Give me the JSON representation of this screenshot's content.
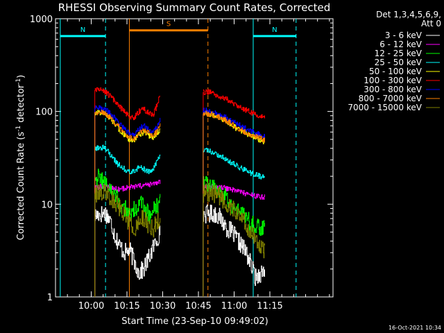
{
  "chart_data": {
    "type": "line",
    "title": "RHESSI Observing Summary Count Rates, Corrected",
    "xlabel": "Start Time (23-Sep-10 09:49:02)",
    "ylabel_main": "Corrected Count Rate (s",
    "ylabel_sup1": "-1",
    "ylabel_mid": " detector",
    "ylabel_sup2": "-1",
    "ylabel_end": ")",
    "yscale": "log",
    "ylim": [
      1,
      1000
    ],
    "xlim_minutes": [
      -4.0,
      112.5
    ],
    "x_ticks": [
      "10:00",
      "10:15",
      "10:30",
      "10:45",
      "11:00",
      "11:15"
    ],
    "x_tick_minutes": [
      11,
      26,
      41,
      56,
      71,
      86
    ],
    "y_ticks": [
      "1",
      "10",
      "100",
      "1000"
    ],
    "y_tick_values": [
      1,
      10,
      100,
      1000
    ],
    "legend_header": [
      "Det 1,3,4,5,6,9,",
      "Att 0"
    ],
    "legend_position": "top-right",
    "footer_date": "16-Oct-2021 10:34",
    "markers": [
      {
        "label": "N",
        "color": "#00ffff",
        "start": -2,
        "end": 17,
        "value": 650,
        "dashed_at": 17
      },
      {
        "label": "N",
        "color": "#00ffff",
        "start": 79,
        "end": 97,
        "value": 650,
        "dashed_at": 97
      },
      {
        "label": "S",
        "color": "#ff8000",
        "start": 27,
        "end": 60,
        "value": 750,
        "dashed_at": 60
      }
    ],
    "segments": [
      [
        12.5,
        40
      ],
      [
        58,
        84
      ]
    ],
    "series": [
      {
        "name": "3 - 6 keV",
        "color": "#ffffff",
        "points": [
          [
            12.5,
            7.5
          ],
          [
            14,
            7.8
          ],
          [
            17,
            8.0
          ],
          [
            19,
            6.5
          ],
          [
            21,
            4.5
          ],
          [
            23,
            3.5
          ],
          [
            25,
            3.0
          ],
          [
            27,
            3.2
          ],
          [
            29,
            2.4
          ],
          [
            31,
            1.8
          ],
          [
            33,
            2.0
          ],
          [
            35,
            2.6
          ],
          [
            37,
            3.4
          ],
          [
            39,
            4.5
          ],
          [
            40,
            5.0
          ],
          [
            58,
            7.8
          ],
          [
            61,
            8.0
          ],
          [
            64,
            7.7
          ],
          [
            66,
            6.5
          ],
          [
            68,
            5.5
          ],
          [
            70,
            5.0
          ],
          [
            72,
            4.2
          ],
          [
            74,
            3.6
          ],
          [
            76,
            3.0
          ],
          [
            78,
            2.2
          ],
          [
            80,
            1.6
          ],
          [
            82,
            1.8
          ],
          [
            84,
            2.0
          ]
        ]
      },
      {
        "name": "6 - 12 keV",
        "color": "#ff00ff",
        "points": [
          [
            12.5,
            15
          ],
          [
            15,
            15.5
          ],
          [
            17,
            16
          ],
          [
            19,
            15
          ],
          [
            22,
            14.5
          ],
          [
            26,
            15
          ],
          [
            30,
            15.5
          ],
          [
            34,
            16
          ],
          [
            37,
            16.5
          ],
          [
            40,
            17.5
          ],
          [
            58,
            15
          ],
          [
            62,
            15.5
          ],
          [
            66,
            15
          ],
          [
            70,
            14.5
          ],
          [
            74,
            13.5
          ],
          [
            78,
            12.5
          ],
          [
            82,
            12
          ],
          [
            84,
            12
          ]
        ]
      },
      {
        "name": "12 - 25 keV",
        "color": "#00ff00",
        "points": [
          [
            12.5,
            20
          ],
          [
            15,
            19
          ],
          [
            17,
            17
          ],
          [
            20,
            13
          ],
          [
            23,
            10
          ],
          [
            26,
            8.5
          ],
          [
            28,
            8.0
          ],
          [
            30,
            9.5
          ],
          [
            32,
            10
          ],
          [
            34,
            8.5
          ],
          [
            36,
            7.5
          ],
          [
            38,
            9.0
          ],
          [
            40,
            11
          ],
          [
            58,
            17
          ],
          [
            61,
            16
          ],
          [
            64,
            14
          ],
          [
            67,
            12
          ],
          [
            70,
            10
          ],
          [
            73,
            8.5
          ],
          [
            76,
            7.0
          ],
          [
            79,
            6.0
          ],
          [
            82,
            5.5
          ],
          [
            84,
            5.5
          ]
        ]
      },
      {
        "name": "25 - 50 keV",
        "color": "#00ffff",
        "points": [
          [
            12.5,
            40
          ],
          [
            15,
            41
          ],
          [
            17,
            40
          ],
          [
            19,
            34
          ],
          [
            22,
            27
          ],
          [
            26,
            23
          ],
          [
            28,
            22
          ],
          [
            30,
            24
          ],
          [
            32,
            25
          ],
          [
            34,
            23
          ],
          [
            36,
            22
          ],
          [
            38,
            27
          ],
          [
            40,
            34
          ],
          [
            58,
            38
          ],
          [
            61,
            37
          ],
          [
            64,
            34
          ],
          [
            67,
            31
          ],
          [
            70,
            28
          ],
          [
            73,
            25
          ],
          [
            76,
            23
          ],
          [
            79,
            21
          ],
          [
            82,
            20
          ],
          [
            84,
            19
          ]
        ]
      },
      {
        "name": "50 - 100 keV",
        "color": "#ffff00",
        "points": [
          [
            12.5,
            98
          ],
          [
            15,
            97
          ],
          [
            17,
            93
          ],
          [
            19,
            83
          ],
          [
            22,
            67
          ],
          [
            25,
            55
          ],
          [
            27,
            50
          ],
          [
            29,
            49
          ],
          [
            31,
            56
          ],
          [
            33,
            60
          ],
          [
            35,
            55
          ],
          [
            37,
            53
          ],
          [
            39,
            60
          ],
          [
            40,
            66
          ],
          [
            58,
            94
          ],
          [
            61,
            93
          ],
          [
            64,
            88
          ],
          [
            67,
            80
          ],
          [
            70,
            71
          ],
          [
            73,
            63
          ],
          [
            76,
            58
          ],
          [
            79,
            53
          ],
          [
            82,
            49
          ],
          [
            84,
            47
          ]
        ]
      },
      {
        "name": "100 - 300 keV",
        "color": "#ff0000",
        "points": [
          [
            12.5,
            170
          ],
          [
            15,
            168
          ],
          [
            17,
            162
          ],
          [
            19,
            145
          ],
          [
            22,
            118
          ],
          [
            25,
            98
          ],
          [
            27,
            88
          ],
          [
            29,
            85
          ],
          [
            31,
            100
          ],
          [
            33,
            107
          ],
          [
            35,
            96
          ],
          [
            37,
            90
          ],
          [
            39,
            125
          ],
          [
            40,
            155
          ],
          [
            58,
            162
          ],
          [
            61,
            162
          ],
          [
            64,
            150
          ],
          [
            67,
            138
          ],
          [
            70,
            125
          ],
          [
            73,
            112
          ],
          [
            76,
            103
          ],
          [
            79,
            95
          ],
          [
            82,
            89
          ],
          [
            84,
            86
          ]
        ]
      },
      {
        "name": "300 - 800 keV",
        "color": "#0000ff",
        "points": [
          [
            12.5,
            108
          ],
          [
            15,
            108
          ],
          [
            17,
            104
          ],
          [
            19,
            94
          ],
          [
            22,
            77
          ],
          [
            25,
            64
          ],
          [
            27,
            57
          ],
          [
            29,
            55
          ],
          [
            31,
            65
          ],
          [
            33,
            70
          ],
          [
            35,
            63
          ],
          [
            37,
            59
          ],
          [
            39,
            70
          ],
          [
            40,
            82
          ],
          [
            58,
            102
          ],
          [
            61,
            102
          ],
          [
            64,
            95
          ],
          [
            67,
            87
          ],
          [
            70,
            79
          ],
          [
            73,
            71
          ],
          [
            76,
            65
          ],
          [
            79,
            60
          ],
          [
            82,
            56
          ],
          [
            84,
            54
          ]
        ]
      },
      {
        "name": "800 - 7000 keV",
        "color": "#ff8000",
        "points": [
          [
            12.5,
            98
          ],
          [
            15,
            98
          ],
          [
            17,
            94
          ],
          [
            19,
            85
          ],
          [
            22,
            70
          ],
          [
            25,
            58
          ],
          [
            27,
            53
          ],
          [
            29,
            50
          ],
          [
            31,
            59
          ],
          [
            33,
            63
          ],
          [
            35,
            58
          ],
          [
            37,
            54
          ],
          [
            39,
            64
          ],
          [
            40,
            74
          ],
          [
            58,
            95
          ],
          [
            61,
            94
          ],
          [
            64,
            88
          ],
          [
            67,
            81
          ],
          [
            70,
            73
          ],
          [
            73,
            65
          ],
          [
            76,
            59
          ],
          [
            79,
            55
          ],
          [
            82,
            51
          ],
          [
            84,
            49
          ]
        ]
      },
      {
        "name": "7000 - 15000 keV",
        "color": "#808000",
        "points": [
          [
            12.5,
            13
          ],
          [
            15,
            13.5
          ],
          [
            17,
            13.5
          ],
          [
            19,
            12
          ],
          [
            22,
            10
          ],
          [
            25,
            7.5
          ],
          [
            27,
            6.0
          ],
          [
            29,
            5.5
          ],
          [
            31,
            6.5
          ],
          [
            33,
            7.0
          ],
          [
            35,
            6.0
          ],
          [
            37,
            5.5
          ],
          [
            39,
            6.5
          ],
          [
            40,
            7.5
          ],
          [
            58,
            13
          ],
          [
            61,
            13.5
          ],
          [
            64,
            12.5
          ],
          [
            67,
            11
          ],
          [
            70,
            9.0
          ],
          [
            73,
            7.5
          ],
          [
            76,
            6.0
          ],
          [
            79,
            4.5
          ],
          [
            82,
            3.5
          ],
          [
            84,
            3.0
          ]
        ]
      }
    ]
  }
}
